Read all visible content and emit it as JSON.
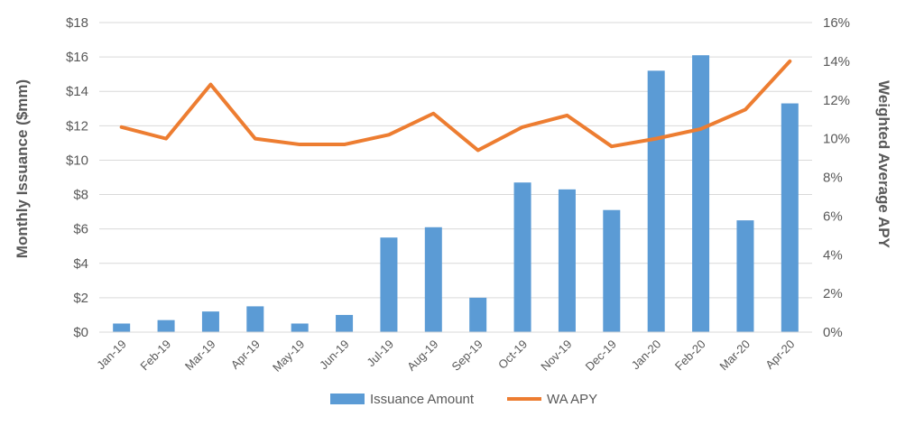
{
  "chart_data": {
    "type": "bar",
    "title": "",
    "categories": [
      "Jan-19",
      "Feb-19",
      "Mar-19",
      "Apr-19",
      "May-19",
      "Jun-19",
      "Jul-19",
      "Aug-19",
      "Sep-19",
      "Oct-19",
      "Nov-19",
      "Dec-19",
      "Jan-20",
      "Feb-20",
      "Mar-20",
      "Apr-20"
    ],
    "series": [
      {
        "name": "Issuance Amount",
        "type": "bar",
        "axis": "left",
        "color": "#5b9bd5",
        "values": [
          0.5,
          0.7,
          1.2,
          1.5,
          0.5,
          1.0,
          5.5,
          6.1,
          2.0,
          8.7,
          8.3,
          7.1,
          15.2,
          16.1,
          6.5,
          13.3
        ]
      },
      {
        "name": "WA APY",
        "type": "line",
        "axis": "right",
        "color": "#ed7d31",
        "values": [
          10.6,
          10.0,
          12.8,
          10.0,
          9.7,
          9.7,
          10.2,
          11.3,
          9.4,
          10.6,
          11.2,
          9.6,
          10.0,
          10.5,
          11.5,
          14.0
        ]
      }
    ],
    "ylabel": "Monthly Issuance ($mm)",
    "ylabel_right": "Weighted Average APY",
    "ylim": [
      0,
      18
    ],
    "ylim_right": [
      0,
      16
    ],
    "yticks": [
      "$0",
      "$2",
      "$4",
      "$6",
      "$8",
      "$10",
      "$12",
      "$14",
      "$16",
      "$18"
    ],
    "yticks_right": [
      "0%",
      "2%",
      "4%",
      "6%",
      "8%",
      "10%",
      "12%",
      "14%",
      "16%"
    ],
    "grid": true,
    "legend": "bottom"
  }
}
